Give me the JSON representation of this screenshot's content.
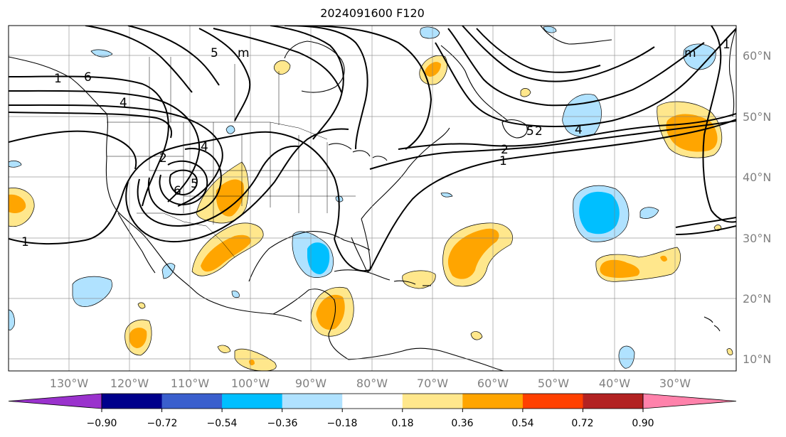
{
  "title": "2024091600 F120",
  "lat_labels": [
    "60°N",
    "50°N",
    "40°N",
    "30°N",
    "20°N",
    "10°N"
  ],
  "lon_labels": [
    "130°W",
    "120°W",
    "110°W",
    "100°W",
    "90°W",
    "80°W",
    "70°W",
    "60°W",
    "50°W",
    "40°W",
    "30°W"
  ],
  "contour_labels": [
    "6",
    "5",
    "m",
    "4",
    "2",
    "4",
    "6",
    "5",
    "2",
    "1",
    "4",
    "5",
    "2",
    "1",
    "m",
    "1",
    "1"
  ],
  "colorbar": {
    "colors": [
      "#9a32cd",
      "#00008b",
      "#3a5fcd",
      "#00bfff",
      "#b0e2ff",
      "#ffffff",
      "#ffe78c",
      "#ffa500",
      "#ff4000",
      "#b22222",
      "#ff82ab"
    ],
    "tick_labels": [
      "−0.90",
      "−0.72",
      "−0.54",
      "−0.36",
      "−0.18",
      "0.18",
      "0.36",
      "0.54",
      "0.72",
      "0.90"
    ]
  },
  "colors": {
    "contour": "#000000",
    "grid": "#808080",
    "coast": "#000000",
    "pos_light": "#ffe78c",
    "pos_strong": "#ffa500",
    "neg_light": "#b0e2ff",
    "neg_strong": "#00bfff"
  }
}
